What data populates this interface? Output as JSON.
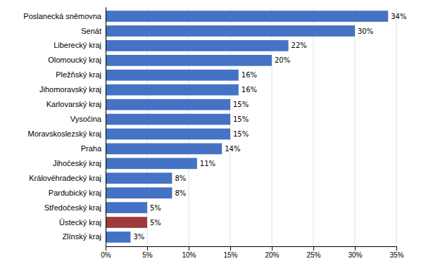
{
  "chart_data": {
    "type": "bar",
    "orientation": "horizontal",
    "categories": [
      "Poslanecká sněmovna",
      "Senát",
      "Liberecký kraj",
      "Olomoucký kraj",
      "Pležňský kraj",
      "Jihomoravský kraj",
      "Karlovarský kraj",
      "Vysočina",
      "Moravskoslezský kraj",
      "Praha",
      "Jihočeský kraj",
      "Královéhradecký kraj",
      "Pardubický kraj",
      "Středočeský kraj",
      "Ústecký kraj",
      "Zlínský kraj"
    ],
    "values": [
      34,
      30,
      22,
      20,
      16,
      16,
      15,
      15,
      15,
      14,
      11,
      8,
      8,
      5,
      5,
      3
    ],
    "value_labels": [
      "34%",
      "30%",
      "22%",
      "20%",
      "16%",
      "16%",
      "15%",
      "15%",
      "15%",
      "14%",
      "11%",
      "8%",
      "8%",
      "5%",
      "5%",
      "3%"
    ],
    "data_labels": true,
    "colors": [
      "#4472C4",
      "#4472C4",
      "#4472C4",
      "#4472C4",
      "#4472C4",
      "#4472C4",
      "#4472C4",
      "#4472C4",
      "#4472C4",
      "#4472C4",
      "#4472C4",
      "#4472C4",
      "#4472C4",
      "#4472C4",
      "#9E3A3A",
      "#4472C4"
    ],
    "xlim": [
      0,
      35
    ],
    "xticks": [
      {
        "value": 0,
        "label": "0%"
      },
      {
        "value": 5,
        "label": "5%"
      },
      {
        "value": 10,
        "label": "10%"
      },
      {
        "value": 15,
        "label": "15%"
      },
      {
        "value": 20,
        "label": "20%"
      },
      {
        "value": 25,
        "label": "25%"
      },
      {
        "value": 30,
        "label": "30%"
      },
      {
        "value": 35,
        "label": "35%"
      }
    ],
    "grid": true
  }
}
